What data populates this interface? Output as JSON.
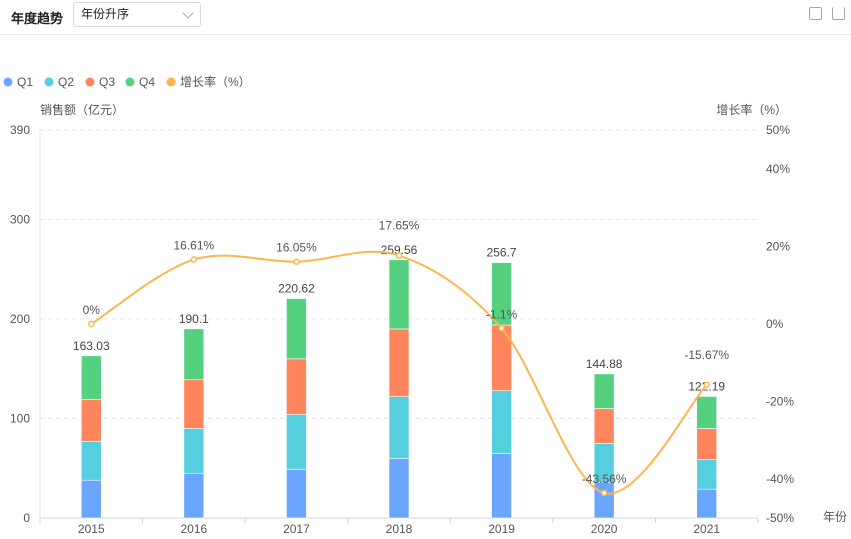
{
  "header": {
    "title": "年度趋势",
    "sort_select": "年份升序"
  },
  "chart_data": {
    "type": "bar",
    "categories": [
      "2015",
      "2016",
      "2017",
      "2018",
      "2019",
      "2020",
      "2021"
    ],
    "series": [
      {
        "name": "Q1",
        "color": "#6aa6ff",
        "values": [
          38,
          45,
          49,
          60,
          65,
          36,
          29
        ]
      },
      {
        "name": "Q2",
        "color": "#55cfdd",
        "values": [
          39,
          45,
          55,
          62,
          63,
          39,
          30
        ]
      },
      {
        "name": "Q3",
        "color": "#ff865c",
        "values": [
          42,
          49,
          56,
          68,
          66,
          35,
          31
        ]
      },
      {
        "name": "Q4",
        "color": "#55d07e",
        "values": [
          44.03,
          51.1,
          60.62,
          69.56,
          62.7,
          34.88,
          32.19
        ]
      }
    ],
    "totals": [
      "163.03",
      "190.1",
      "220.62",
      "259.56",
      "256.7",
      "144.88",
      "122.19"
    ],
    "line": {
      "name": "增长率（%）",
      "color": "#ffb54d",
      "values": [
        0,
        16.61,
        16.05,
        17.65,
        -1.1,
        -43.56,
        -15.67
      ],
      "labels": [
        "0%",
        "16.61%",
        "16.05%",
        "17.65%",
        "-1.1%",
        "-43.56%",
        "-15.67%"
      ]
    },
    "ylabel": "销售额（亿元）",
    "y2label": "增长率（%）",
    "xlabel": "年份",
    "ylim": [
      0,
      390
    ],
    "yticks": [
      "0",
      "100",
      "200",
      "300",
      "390"
    ],
    "y2lim": [
      -50,
      50
    ],
    "y2ticks": [
      "-50%",
      "-40%",
      "-20%",
      "0%",
      "20%",
      "40%",
      "50%"
    ],
    "legend_position": "top-left"
  }
}
